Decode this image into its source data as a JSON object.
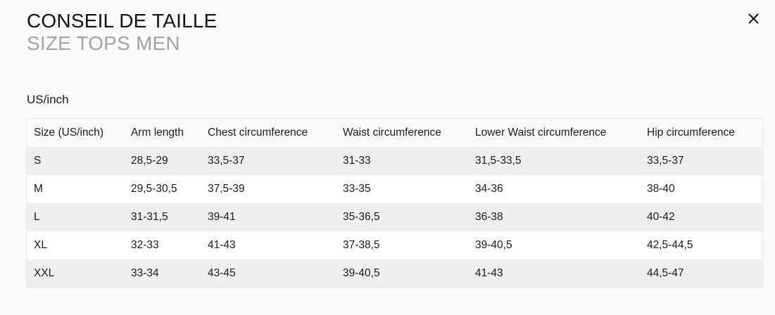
{
  "modal": {
    "title": "CONSEIL DE TAILLE",
    "subtitle": "SIZE TOPS MEN",
    "close_icon": "close-icon",
    "unit_label": "US/inch"
  },
  "table": {
    "headers": [
      "Size (US/inch)",
      "Arm length",
      "Chest circumference",
      "Waist circumference",
      "Lower Waist circumference",
      "Hip circumference"
    ],
    "rows": [
      [
        "S",
        "28,5-29",
        "33,5-37",
        "31-33",
        "31,5-33,5",
        "33,5-37"
      ],
      [
        "M",
        "29,5-30,5",
        "37,5-39",
        "33-35",
        "34-36",
        "38-40"
      ],
      [
        "L",
        "31-31,5",
        "39-41",
        "35-36,5",
        "36-38",
        "40-42"
      ],
      [
        "XL",
        "32-33",
        "41-43",
        "37-38,5",
        "39-40,5",
        "42,5-44,5"
      ],
      [
        "XXL",
        "33-34",
        "43-45",
        "39-40,5",
        "41-43",
        "44,5-47"
      ]
    ]
  },
  "colors": {
    "background": "#fafafa",
    "subtitle": "#a3a3a3",
    "row_odd": "#efefef",
    "row_even": "#ffffff"
  }
}
